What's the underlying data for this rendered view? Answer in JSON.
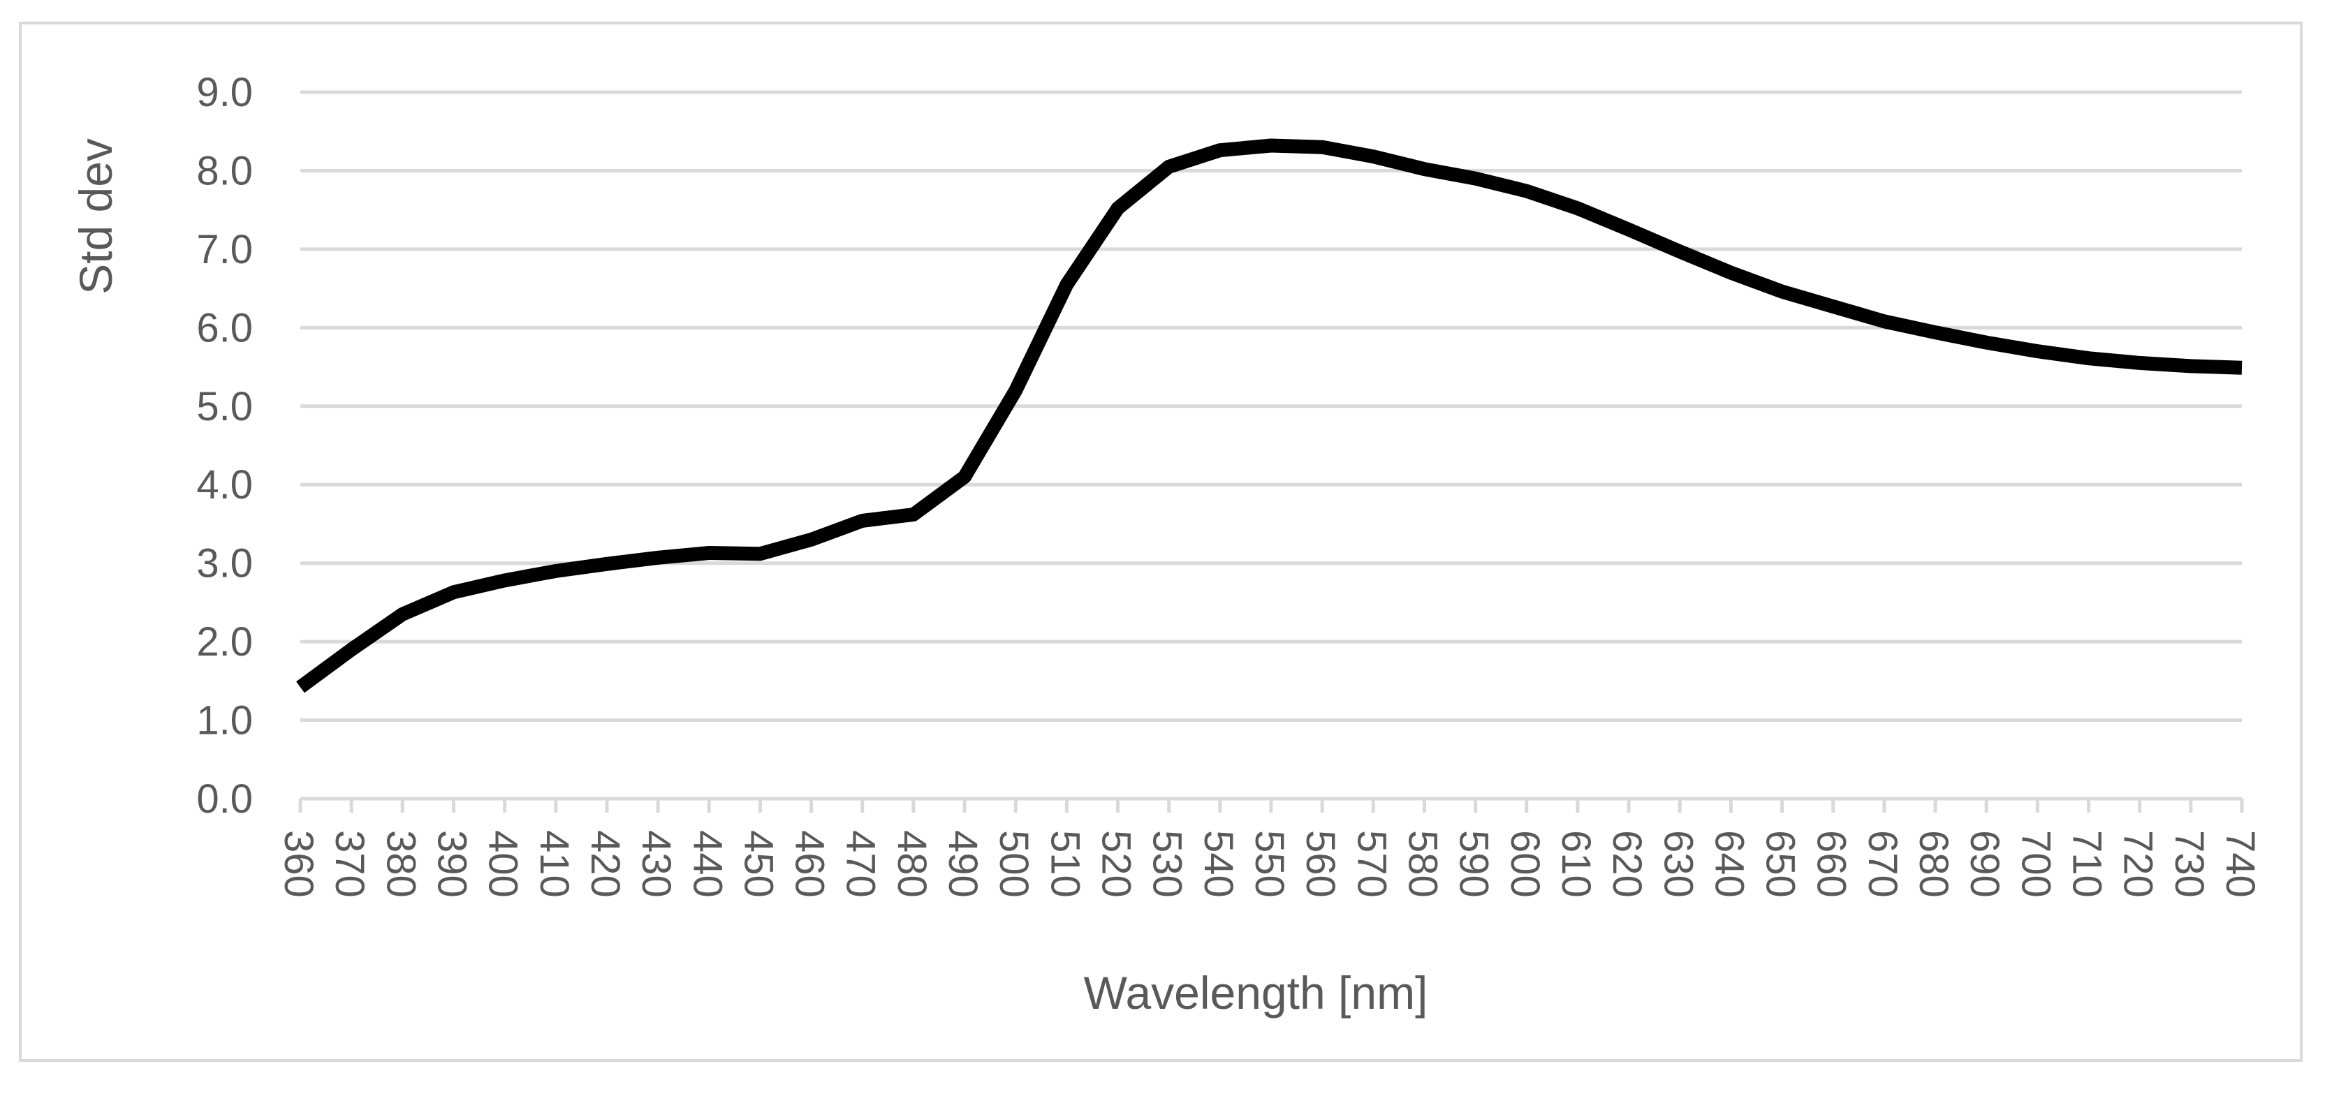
{
  "chart_data": {
    "type": "line",
    "title": "",
    "xlabel": "Wavelength [nm]",
    "ylabel": "Std dev",
    "xlim": [
      360,
      740
    ],
    "ylim": [
      0,
      9
    ],
    "grid": true,
    "legend": "none",
    "x_tick_labels": [
      "360",
      "370",
      "380",
      "390",
      "400",
      "410",
      "420",
      "430",
      "440",
      "450",
      "460",
      "470",
      "480",
      "490",
      "500",
      "510",
      "520",
      "530",
      "540",
      "550",
      "560",
      "570",
      "580",
      "590",
      "600",
      "610",
      "620",
      "630",
      "640",
      "650",
      "660",
      "670",
      "680",
      "690",
      "700",
      "710",
      "720",
      "730",
      "740"
    ],
    "y_tick_labels": [
      "0.0",
      "1.0",
      "2.0",
      "3.0",
      "4.0",
      "5.0",
      "6.0",
      "7.0",
      "8.0",
      "9.0"
    ],
    "y_ticks": [
      0,
      1,
      2,
      3,
      4,
      5,
      6,
      7,
      8,
      9
    ],
    "series": [
      {
        "name": "Std dev",
        "color": "#000000",
        "x": [
          360,
          370,
          380,
          390,
          400,
          410,
          420,
          430,
          440,
          450,
          460,
          470,
          480,
          490,
          500,
          510,
          520,
          530,
          540,
          550,
          560,
          570,
          580,
          590,
          600,
          610,
          620,
          630,
          640,
          650,
          660,
          670,
          680,
          690,
          700,
          710,
          720,
          730,
          740
        ],
        "y": [
          1.42,
          1.9,
          2.35,
          2.63,
          2.78,
          2.9,
          2.99,
          3.07,
          3.13,
          3.12,
          3.3,
          3.54,
          3.62,
          4.1,
          5.2,
          6.55,
          7.52,
          8.05,
          8.26,
          8.32,
          8.3,
          8.18,
          8.02,
          7.9,
          7.74,
          7.52,
          7.25,
          6.97,
          6.7,
          6.46,
          6.27,
          6.08,
          5.94,
          5.81,
          5.7,
          5.61,
          5.55,
          5.51,
          5.49
        ]
      }
    ]
  }
}
